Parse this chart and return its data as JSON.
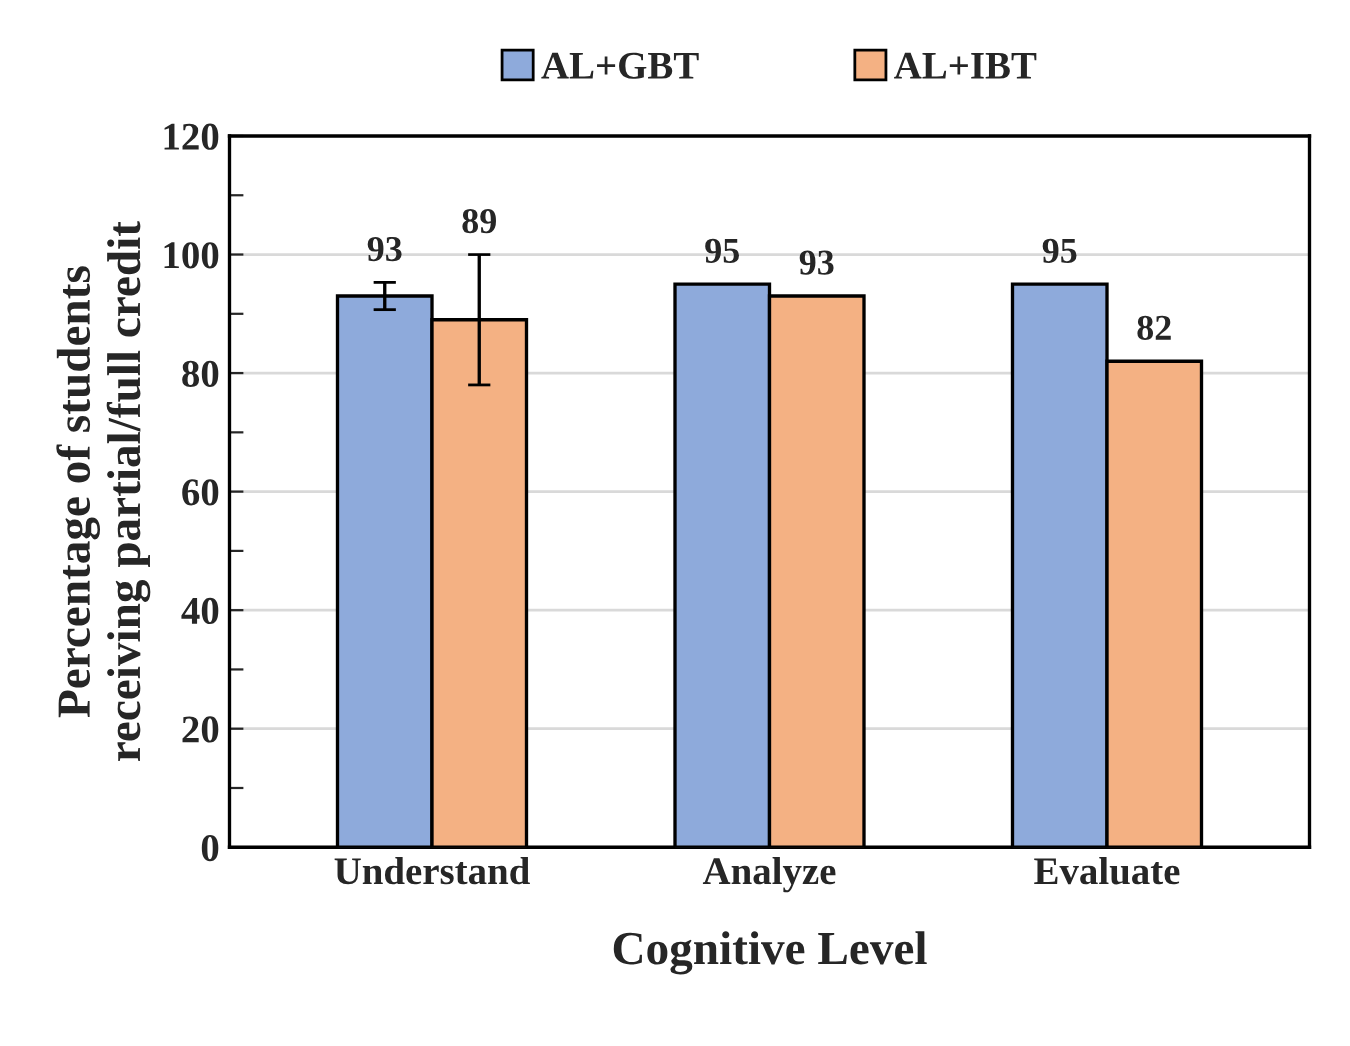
{
  "chart_data": {
    "type": "bar",
    "xlabel": "Cognitive Level",
    "ylabel": "Percentage of students\nreceiving partial/full credit",
    "categories": [
      "Understand",
      "Analyze",
      "Evaluate"
    ],
    "series": [
      {
        "name": "AL+GBT",
        "color": "#8eaadb",
        "values": [
          93,
          95,
          95
        ],
        "errors": [
          2.3,
          null,
          null
        ]
      },
      {
        "name": "AL+IBT",
        "color": "#f4b183",
        "values": [
          89,
          93,
          82
        ],
        "errors": [
          11,
          null,
          null
        ]
      }
    ],
    "ylim": [
      0,
      120
    ],
    "yticks": [
      0,
      {
        "value": 10,
        "label": null
      },
      20,
      {
        "value": 30,
        "label": null
      },
      40,
      {
        "value": 50,
        "label": null
      },
      60,
      {
        "value": 70,
        "label": null
      },
      80,
      {
        "value": 90,
        "label": null
      },
      100,
      {
        "value": 110,
        "label": null
      },
      120
    ],
    "grid": "y",
    "legend": "top",
    "data_labels": true
  }
}
